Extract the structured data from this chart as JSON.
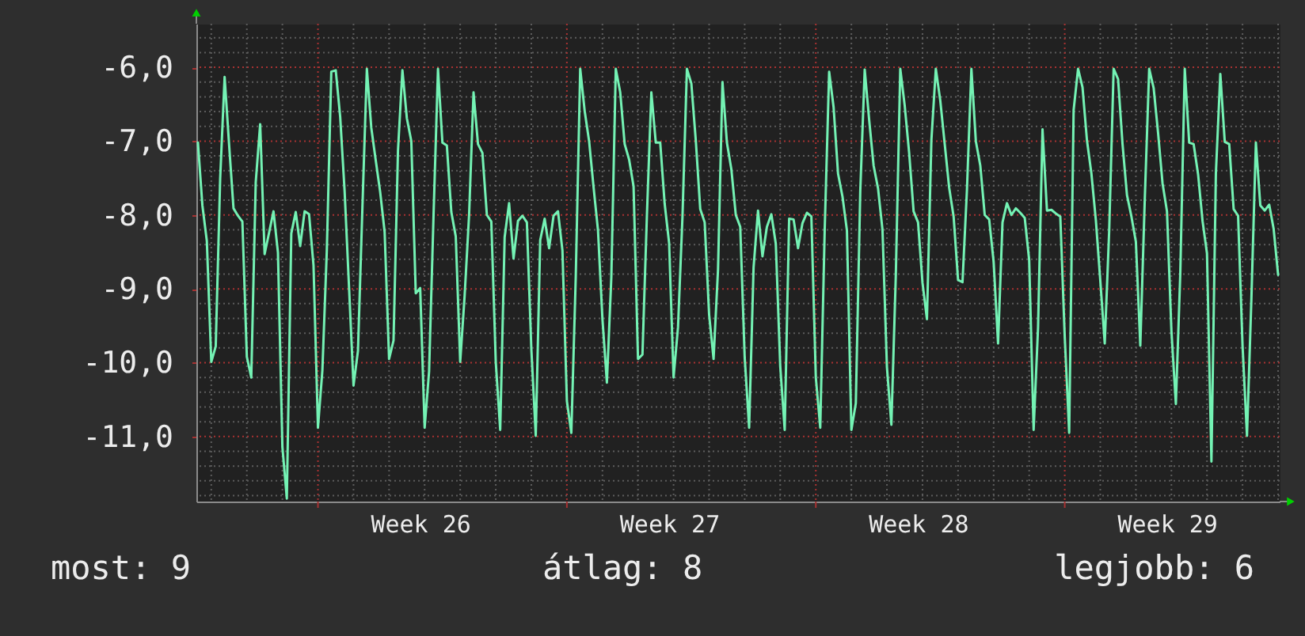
{
  "chart_data": {
    "type": "line",
    "color": "#74f2b4",
    "categories": [
      null,
      null,
      null,
      null,
      null,
      null,
      null,
      null,
      null,
      null,
      null,
      null,
      null,
      null,
      null,
      null,
      null,
      null,
      null,
      null,
      null,
      null,
      null,
      null,
      null,
      null,
      null,
      null,
      null,
      null,
      null,
      null,
      null,
      null,
      null,
      null,
      null,
      null,
      null,
      null,
      null,
      null,
      null,
      null,
      null,
      null,
      null,
      null,
      null,
      null,
      "Week 26",
      null,
      null,
      null,
      null,
      null,
      null,
      null,
      null,
      null,
      null,
      null,
      null,
      null,
      null,
      null,
      null,
      null,
      null,
      null,
      null,
      null,
      null,
      null,
      null,
      null,
      null,
      null,
      null,
      null,
      null,
      null,
      null,
      null,
      null,
      null,
      null,
      null,
      null,
      null,
      null,
      null,
      null,
      null,
      null,
      null,
      null,
      null,
      null,
      null,
      null,
      null,
      null,
      null,
      null,
      null,
      "Week 27",
      null,
      null,
      null,
      null,
      null,
      null,
      null,
      null,
      null,
      null,
      null,
      null,
      null,
      null,
      null,
      null,
      null,
      null,
      null,
      null,
      null,
      null,
      null,
      null,
      null,
      null,
      null,
      null,
      null,
      null,
      null,
      null,
      null,
      null,
      null,
      null,
      null,
      null,
      null,
      null,
      null,
      null,
      null,
      null,
      null,
      null,
      null,
      null,
      null,
      null,
      null,
      null,
      null,
      null,
      null,
      "Week 28",
      null,
      null,
      null,
      null,
      null,
      null,
      null,
      null,
      null,
      null,
      null,
      null,
      null,
      null,
      null,
      null,
      null,
      null,
      null,
      null,
      null,
      null,
      null,
      null,
      null,
      null,
      null,
      null,
      null,
      null,
      null,
      null,
      null,
      null,
      null,
      null,
      null,
      null,
      null,
      null,
      null,
      null,
      null,
      null,
      null,
      null,
      null,
      null,
      null,
      null,
      null,
      null,
      null,
      null,
      null,
      "Week 29",
      null,
      null,
      null,
      null,
      null,
      null,
      null,
      null,
      null,
      null,
      null,
      null,
      null,
      null,
      null,
      null,
      null,
      null,
      null,
      null,
      null,
      null,
      null,
      null,
      null
    ],
    "values": [
      -7.02,
      -7.87,
      -8.35,
      -9.99,
      -9.78,
      -7.51,
      -6.13,
      -7.04,
      -7.91,
      -8.01,
      -8.09,
      -9.92,
      -10.2,
      -7.56,
      -6.77,
      -8.53,
      -8.24,
      -7.95,
      -8.51,
      -11.14,
      -11.84,
      -8.25,
      -7.96,
      -8.42,
      -7.95,
      -7.99,
      -8.68,
      -10.88,
      -10.1,
      -8.47,
      -6.06,
      -6.04,
      -6.67,
      -7.68,
      -8.99,
      -10.31,
      -9.84,
      -7.9,
      -6.02,
      -6.82,
      -7.26,
      -7.69,
      -8.23,
      -9.95,
      -9.7,
      -7.13,
      -6.04,
      -6.69,
      -7.0,
      -9.06,
      -8.99,
      -10.88,
      -10.12,
      -8.01,
      -6.02,
      -7.02,
      -7.06,
      -7.96,
      -8.29,
      -9.99,
      -9.09,
      -8.0,
      -6.34,
      -7.04,
      -7.16,
      -8.0,
      -8.09,
      -9.99,
      -10.91,
      -8.3,
      -7.84,
      -8.59,
      -8.08,
      -8.01,
      -8.1,
      -9.81,
      -10.99,
      -8.34,
      -8.05,
      -8.45,
      -8.01,
      -7.95,
      -8.48,
      -10.52,
      -10.95,
      -8.83,
      -6.02,
      -6.59,
      -7.0,
      -7.62,
      -8.21,
      -9.41,
      -10.27,
      -8.84,
      -6.02,
      -6.34,
      -7.04,
      -7.25,
      -7.61,
      -9.95,
      -9.89,
      -8.01,
      -6.34,
      -7.02,
      -7.02,
      -7.85,
      -8.38,
      -10.2,
      -9.52,
      -8.03,
      -6.02,
      -6.22,
      -6.99,
      -7.92,
      -8.1,
      -9.35,
      -9.95,
      -8.74,
      -6.2,
      -7.02,
      -7.38,
      -8.0,
      -8.16,
      -9.93,
      -10.88,
      -8.71,
      -7.94,
      -8.56,
      -8.16,
      -7.99,
      -8.39,
      -10.05,
      -10.91,
      -8.05,
      -8.06,
      -8.45,
      -8.11,
      -7.97,
      -8.02,
      -10.2,
      -10.88,
      -8.2,
      -6.06,
      -6.54,
      -7.44,
      -7.75,
      -8.21,
      -10.91,
      -10.55,
      -7.68,
      -6.03,
      -6.71,
      -7.33,
      -7.64,
      -8.2,
      -10.06,
      -10.84,
      -8.81,
      -6.02,
      -6.52,
      -7.16,
      -7.95,
      -8.1,
      -8.92,
      -9.41,
      -6.99,
      -6.02,
      -6.45,
      -7.04,
      -7.63,
      -8.02,
      -8.88,
      -8.91,
      -7.66,
      -6.02,
      -7.0,
      -7.33,
      -8.0,
      -8.06,
      -8.63,
      -9.74,
      -8.1,
      -7.84,
      -8.0,
      -7.91,
      -7.97,
      -8.04,
      -8.61,
      -10.91,
      -9.52,
      -6.84,
      -7.94,
      -7.93,
      -7.98,
      -8.02,
      -9.65,
      -10.95,
      -6.58,
      -6.02,
      -6.27,
      -6.99,
      -7.44,
      -8.07,
      -8.89,
      -9.74,
      -8.21,
      -6.02,
      -6.16,
      -7.04,
      -7.73,
      -8.02,
      -8.36,
      -9.77,
      -7.8,
      -6.02,
      -6.28,
      -6.89,
      -7.57,
      -7.95,
      -9.57,
      -10.56,
      -8.78,
      -6.02,
      -7.02,
      -7.04,
      -7.45,
      -8.08,
      -8.52,
      -11.34,
      -7.44,
      -6.09,
      -7.01,
      -7.04,
      -7.92,
      -8.01,
      -9.77,
      -10.99,
      -9.12,
      -7.02,
      -7.87,
      -7.94,
      -7.86,
      -8.19,
      -8.81
    ],
    "ylim": [
      -11.88,
      -5.41
    ],
    "yticks": [
      {
        "value": -6,
        "label": "-6,0"
      },
      {
        "value": -7,
        "label": "-7,0"
      },
      {
        "value": -8,
        "label": "-8,0"
      },
      {
        "value": -9,
        "label": "-9,0"
      },
      {
        "value": -10,
        "label": "-10,0"
      },
      {
        "value": -11,
        "label": "-11,0"
      }
    ],
    "grid": true,
    "annotations": [
      "most: 9",
      "átlag: 8",
      "legjobb: 6"
    ]
  }
}
